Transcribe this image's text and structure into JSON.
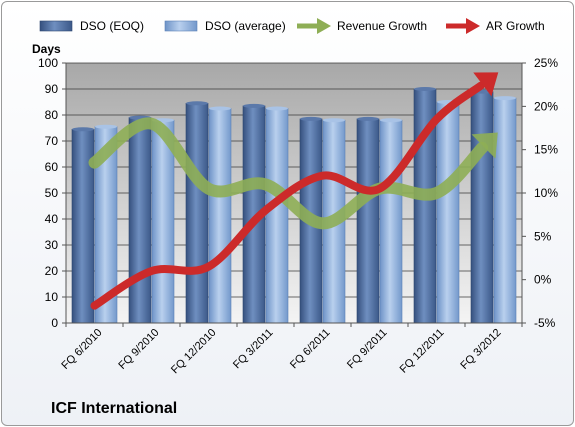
{
  "chart_data": {
    "type": "bar",
    "title": "ICF International",
    "y_left_label": "Days",
    "categories": [
      "FQ 6/2010",
      "FQ 9/2010",
      "FQ 12/2010",
      "FQ 3/2011",
      "FQ 6/2011",
      "FQ 9/2011",
      "FQ 12/2011",
      "FQ 3/2012"
    ],
    "ylim_left": [
      0,
      100
    ],
    "ylim_right": [
      -5,
      25
    ],
    "y_left_ticks": [
      0,
      10,
      20,
      30,
      40,
      50,
      60,
      70,
      80,
      90,
      100
    ],
    "y_right_ticks": [
      "-5%",
      "0%",
      "5%",
      "10%",
      "15%",
      "20%",
      "25%"
    ],
    "y_right_tick_values": [
      -5,
      0,
      5,
      10,
      15,
      20,
      25
    ],
    "legend_position": "top",
    "series": [
      {
        "name": "DSO (EOQ)",
        "kind": "bar",
        "axis": "left",
        "color": "#4f6e9f",
        "values": [
          74.5,
          79,
          84.5,
          83.5,
          78.5,
          78.5,
          90,
          89
        ]
      },
      {
        "name": "DSO (average)",
        "kind": "bar",
        "axis": "left",
        "color": "#8fb0da",
        "values": [
          75.5,
          78,
          82.5,
          82.5,
          78,
          78,
          85,
          86.5
        ]
      },
      {
        "name": "Revenue Growth",
        "kind": "line",
        "axis": "right",
        "color": "#8eae55",
        "values": [
          13.5,
          18,
          10.5,
          11,
          6.5,
          10.5,
          10,
          16.5
        ]
      },
      {
        "name": "AR Growth",
        "kind": "line",
        "axis": "right",
        "color": "#cc2a2a",
        "values": [
          -3,
          1,
          1.5,
          8,
          12,
          10.5,
          18.5,
          23.5
        ]
      }
    ]
  }
}
